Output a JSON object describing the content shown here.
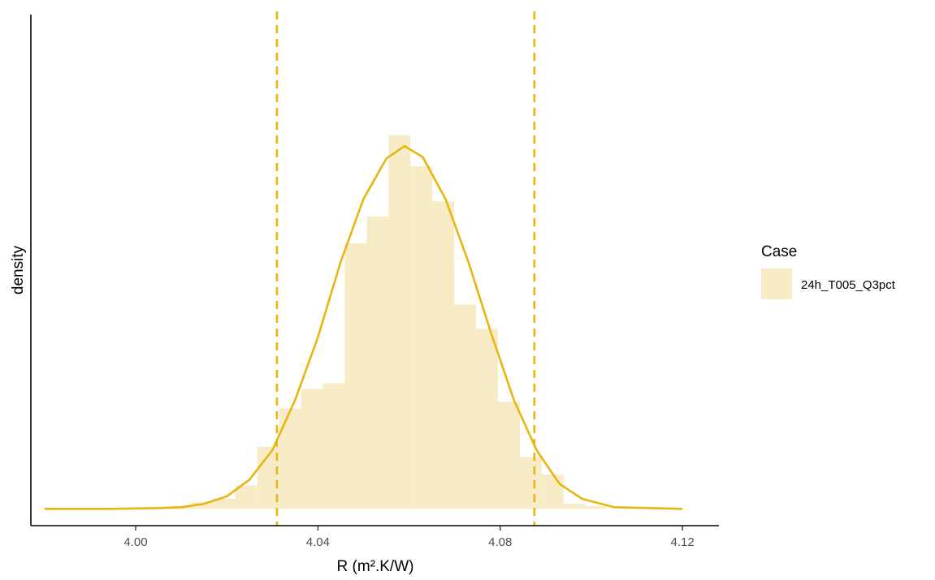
{
  "chart_data": {
    "type": "bar",
    "subtype": "histogram-with-density-curve",
    "xlabel": "R (m².K/W)",
    "ylabel": "density",
    "xlim": [
      3.977,
      4.128
    ],
    "ylim": [
      -2,
      59
    ],
    "xticks": [
      4.0,
      4.04,
      4.08,
      4.12
    ],
    "xtick_labels": [
      "4.00",
      "4.04",
      "4.08",
      "4.12"
    ],
    "y_tick_labels_shown": false,
    "grid": false,
    "legend": {
      "title": "Case",
      "position": "right",
      "entries": [
        "24h_T005_Q3pct"
      ]
    },
    "series": [
      {
        "name": "24h_T005_Q3pct",
        "kind": "histogram",
        "bin_edges": [
          4.0075,
          4.0123,
          4.0171,
          4.0219,
          4.0267,
          4.0315,
          4.0363,
          4.0411,
          4.0459,
          4.0507,
          4.0555,
          4.0603,
          4.0651,
          4.0699,
          4.0747,
          4.0795,
          4.0843,
          4.0891,
          4.0939,
          4.0987,
          4.1035
        ],
        "values": [
          0.4,
          0.8,
          1.2,
          2.8,
          7.4,
          12.0,
          14.3,
          15.0,
          31.7,
          34.9,
          44.6,
          40.9,
          36.7,
          24.4,
          21.5,
          12.8,
          6.2,
          4.1,
          0.6,
          0.3
        ],
        "color": "#f8ecc6"
      },
      {
        "kind": "density-curve",
        "x": [
          3.98,
          3.995,
          4.005,
          4.01,
          4.015,
          4.02,
          4.025,
          4.03,
          4.035,
          4.04,
          4.045,
          4.05,
          4.055,
          4.059,
          4.063,
          4.068,
          4.073,
          4.078,
          4.083,
          4.088,
          4.093,
          4.098,
          4.105,
          4.12
        ],
        "y": [
          0.0,
          0.0,
          0.1,
          0.2,
          0.6,
          1.5,
          3.5,
          7.0,
          13.0,
          20.5,
          29.5,
          37.0,
          41.8,
          43.3,
          42.0,
          37.0,
          29.5,
          21.0,
          13.0,
          7.0,
          3.0,
          1.2,
          0.2,
          0.0
        ],
        "color": "#e6b611"
      }
    ],
    "reference_lines": {
      "x": [
        4.031,
        4.0875
      ],
      "style": "dashed",
      "color": "#e6b611"
    }
  }
}
